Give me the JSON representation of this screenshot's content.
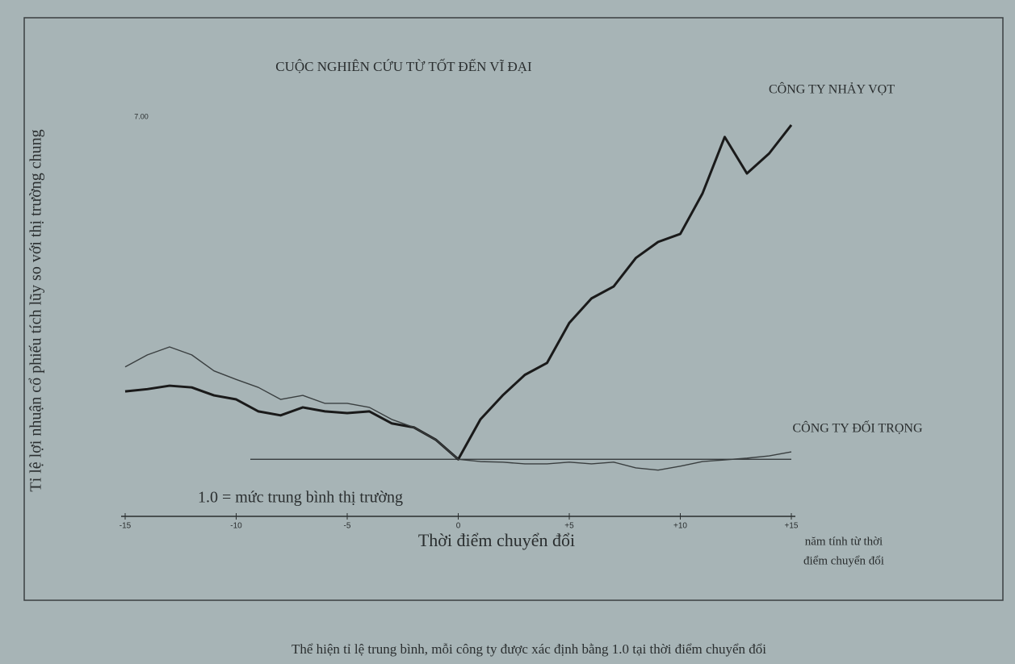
{
  "chart_data": {
    "type": "line",
    "title": "CUỘC NGHIÊN CỨU TỪ TỐT ĐẾN VĨ ĐẠI",
    "y_label": "Tỉ lệ lợi nhuận cổ phiếu tích lũy so với thị trường chung",
    "x_label": "Thời điểm chuyển đổi",
    "x_note": [
      "năm tính từ thời",
      "điểm chuyển đổi"
    ],
    "caption": "Thể hiện tỉ lệ trung bình, mỗi công ty được xác định bằng 1.0 tại thời điểm chuyển đổi",
    "reference_line": {
      "value": 1,
      "label": "1.0 = mức trung bình thị trường"
    },
    "x": [
      -15,
      -14,
      -13,
      -12,
      -11,
      -10,
      -9,
      -8,
      -7,
      -6,
      -5,
      -4,
      -3,
      -2,
      -1,
      0,
      1,
      2,
      3,
      4,
      5,
      6,
      7,
      8,
      9,
      10,
      11,
      12,
      13,
      14,
      15
    ],
    "series": [
      {
        "name": "CÔNG TY NHẢY VỌT",
        "color": "#1a1a1a",
        "width": 3,
        "values": [
          2.19,
          2.23,
          2.29,
          2.26,
          2.12,
          2.05,
          1.84,
          1.77,
          1.91,
          1.84,
          1.81,
          1.84,
          1.63,
          1.56,
          1.34,
          1.0,
          1.7,
          2.12,
          2.48,
          2.69,
          3.39,
          3.82,
          4.03,
          4.53,
          4.81,
          4.95,
          5.66,
          6.65,
          6.01,
          6.36,
          6.86
        ]
      },
      {
        "name": "CÔNG TY ĐỐI TRỌNG",
        "color": "#3a3f40",
        "width": 1.4,
        "values": [
          2.62,
          2.83,
          2.97,
          2.83,
          2.55,
          2.4,
          2.26,
          2.05,
          2.12,
          1.98,
          1.98,
          1.91,
          1.7,
          1.56,
          1.34,
          1.0,
          0.96,
          0.95,
          0.92,
          0.92,
          0.95,
          0.92,
          0.95,
          0.85,
          0.81,
          0.88,
          0.96,
          0.99,
          1.02,
          1.06,
          1.13
        ]
      }
    ],
    "xlim": [
      -15,
      15
    ],
    "xticks": [
      -15,
      -10,
      -5,
      0,
      {
        "value": 5,
        "label": "+5"
      },
      {
        "value": 10,
        "label": "+10"
      },
      {
        "value": 15,
        "label": "+15"
      }
    ],
    "ylim": [
      0,
      7
    ],
    "yticks": [
      {
        "value": 7,
        "label": "7.00"
      }
    ]
  }
}
